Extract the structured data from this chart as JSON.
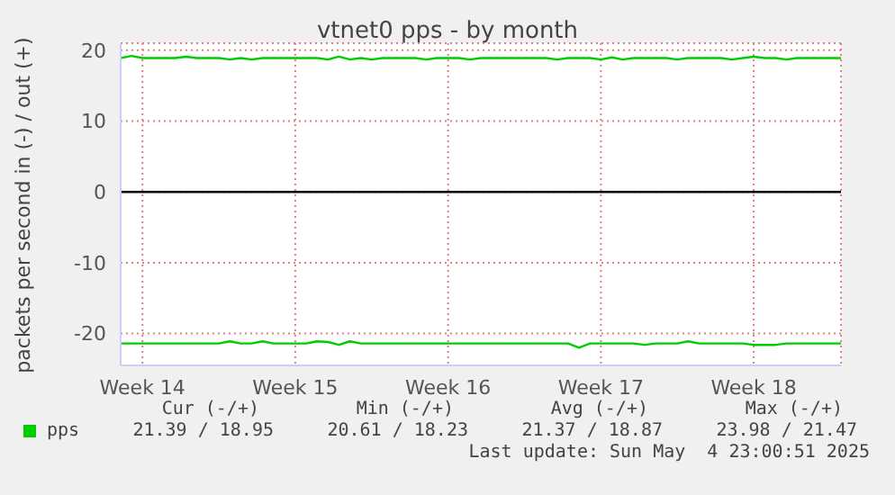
{
  "chart_data": {
    "type": "line",
    "title": "vtnet0 pps - by month",
    "ylabel": "packets per second in (-) / out (+)",
    "categories": [
      null,
      null,
      "Week 14",
      null,
      null,
      null,
      null,
      null,
      null,
      null,
      null,
      null,
      null,
      null,
      null,
      null,
      "Week 15",
      null,
      null,
      null,
      null,
      null,
      null,
      null,
      null,
      null,
      null,
      null,
      null,
      null,
      "Week 16",
      null,
      null,
      null,
      null,
      null,
      null,
      null,
      null,
      null,
      null,
      null,
      null,
      null,
      "Week 17",
      null,
      null,
      null,
      null,
      null,
      null,
      null,
      null,
      null,
      null,
      null,
      null,
      null,
      "Week 18",
      null,
      null,
      null,
      null,
      null,
      null,
      null,
      null
    ],
    "series": [
      {
        "name": "pps",
        "color": "#00cc00",
        "values": [
          18.9,
          19.2,
          18.9,
          18.9,
          18.9,
          18.9,
          19.1,
          18.9,
          18.9,
          18.9,
          18.7,
          18.9,
          18.7,
          18.9,
          18.9,
          18.9,
          18.9,
          18.9,
          18.9,
          18.7,
          19.1,
          18.7,
          18.9,
          18.7,
          18.9,
          18.9,
          18.9,
          18.9,
          18.7,
          18.9,
          18.9,
          18.9,
          18.7,
          18.9,
          18.9,
          18.9,
          18.9,
          18.9,
          18.9,
          18.9,
          18.7,
          18.9,
          18.9,
          18.9,
          18.7,
          19.0,
          18.7,
          18.9,
          18.9,
          18.9,
          18.9,
          18.7,
          18.9,
          18.9,
          18.9,
          18.9,
          18.7,
          18.9,
          19.1,
          18.9,
          18.9,
          18.7,
          18.9,
          18.9,
          18.9,
          18.9,
          18.9
        ]
      },
      {
        "color": "#00cc00",
        "values": [
          -21.4,
          -21.4,
          -21.4,
          -21.4,
          -21.4,
          -21.4,
          -21.4,
          -21.4,
          -21.4,
          -21.4,
          -21.1,
          -21.4,
          -21.4,
          -21.1,
          -21.4,
          -21.4,
          -21.4,
          -21.4,
          -21.1,
          -21.2,
          -21.6,
          -21.1,
          -21.4,
          -21.4,
          -21.4,
          -21.4,
          -21.4,
          -21.4,
          -21.4,
          -21.4,
          -21.4,
          -21.4,
          -21.4,
          -21.4,
          -21.4,
          -21.4,
          -21.4,
          -21.4,
          -21.4,
          -21.4,
          -21.4,
          -21.4,
          -22.0,
          -21.4,
          -21.4,
          -21.4,
          -21.4,
          -21.4,
          -21.6,
          -21.4,
          -21.4,
          -21.4,
          -21.1,
          -21.4,
          -21.4,
          -21.4,
          -21.4,
          -21.4,
          -21.6,
          -21.6,
          -21.6,
          -21.4,
          -21.4,
          -21.4,
          -21.4,
          -21.4,
          -21.4
        ]
      }
    ],
    "ylim": [
      -24.5,
      21
    ],
    "yticks": [
      -20,
      -10,
      0,
      10,
      20
    ],
    "ref_lines": [
      {
        "axis": "y",
        "value": 0,
        "color": "#000000"
      }
    ],
    "grid": true,
    "legend": "bottom left",
    "line_style": "solid",
    "marker": "none",
    "annotations": [
      "Cur (-/+)",
      "Min (-/+)",
      "Avg (-/+)",
      "Max (-/+)",
      "21.39 / 18.95",
      "20.61 / 18.23",
      "21.37 / 18.87",
      "23.98 / 21.47",
      "Last update: Sun May  4 23:00:51 2025"
    ]
  }
}
